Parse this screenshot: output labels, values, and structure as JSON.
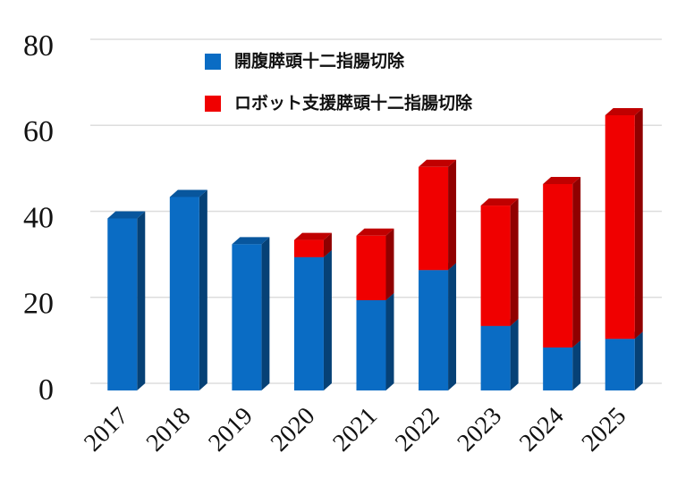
{
  "chart_data": {
    "type": "bar",
    "stacked": true,
    "categories": [
      "2017",
      "2018",
      "2019",
      "2020",
      "2021",
      "2022",
      "2023",
      "2024",
      "2025"
    ],
    "series": [
      {
        "name": "開腹膵頭十二指腸切除",
        "color": "#0a6cc4",
        "values": [
          40,
          45,
          34,
          31,
          21,
          28,
          15,
          10,
          12
        ]
      },
      {
        "name": "ロボット支援膵頭十二指腸切除",
        "color": "#f00000",
        "values": [
          null,
          null,
          null,
          4,
          15,
          24,
          28,
          38,
          52
        ]
      }
    ],
    "ylim": [
      0,
      80
    ],
    "yticks": [
      0,
      20,
      40,
      60,
      80
    ],
    "grid": true,
    "legend": "top"
  }
}
